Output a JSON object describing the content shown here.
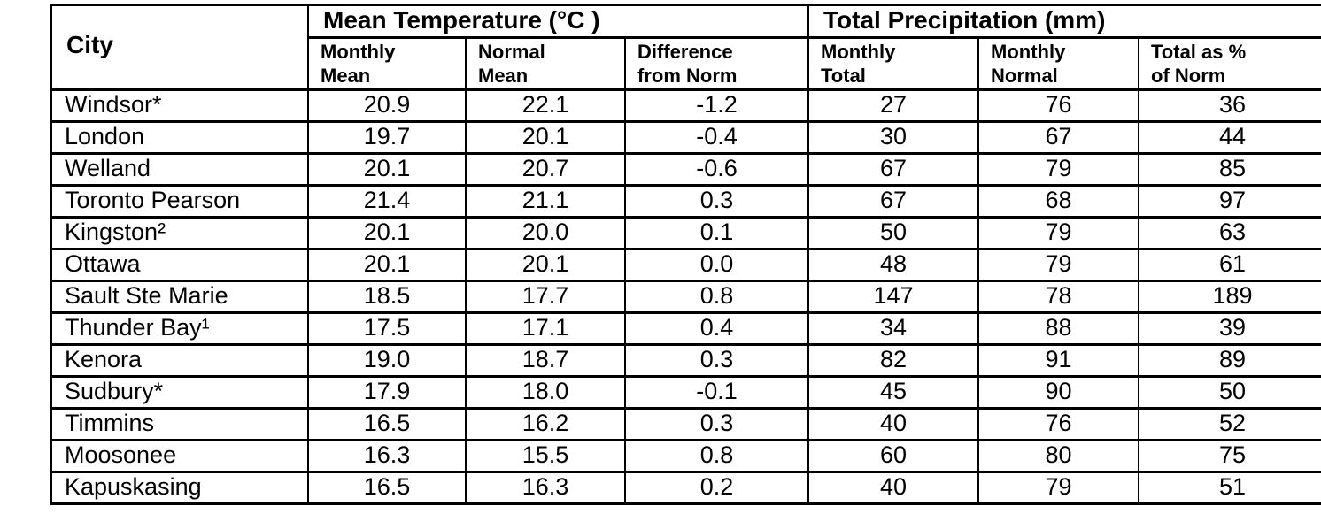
{
  "table": {
    "header": {
      "city": "City",
      "temp_group": "Mean Temperature (°C )",
      "precip_group": "Total Precipitation (mm)",
      "subcolumns": [
        "Monthly\nMean",
        "Normal\nMean",
        "Difference\nfrom Norm",
        "Monthly\nTotal",
        "Monthly\nNormal",
        "Total as %\nof Norm"
      ]
    },
    "column_keys": [
      "city",
      "monthly_mean",
      "normal_mean",
      "diff_from_norm",
      "monthly_total",
      "monthly_normal",
      "total_pct_of_norm"
    ],
    "rows": [
      {
        "city": "Windsor*",
        "monthly_mean": "20.9",
        "normal_mean": "22.1",
        "diff_from_norm": "-1.2",
        "monthly_total": "27",
        "monthly_normal": "76",
        "total_pct_of_norm": "36"
      },
      {
        "city": "London",
        "monthly_mean": "19.7",
        "normal_mean": "20.1",
        "diff_from_norm": "-0.4",
        "monthly_total": "30",
        "monthly_normal": "67",
        "total_pct_of_norm": "44"
      },
      {
        "city": "Welland",
        "monthly_mean": "20.1",
        "normal_mean": "20.7",
        "diff_from_norm": "-0.6",
        "monthly_total": "67",
        "monthly_normal": "79",
        "total_pct_of_norm": "85"
      },
      {
        "city": "Toronto Pearson",
        "monthly_mean": "21.4",
        "normal_mean": "21.1",
        "diff_from_norm": "0.3",
        "monthly_total": "67",
        "monthly_normal": "68",
        "total_pct_of_norm": "97"
      },
      {
        "city": "Kingston²",
        "monthly_mean": "20.1",
        "normal_mean": "20.0",
        "diff_from_norm": "0.1",
        "monthly_total": "50",
        "monthly_normal": "79",
        "total_pct_of_norm": "63"
      },
      {
        "city": "Ottawa",
        "monthly_mean": "20.1",
        "normal_mean": "20.1",
        "diff_from_norm": "0.0",
        "monthly_total": "48",
        "monthly_normal": "79",
        "total_pct_of_norm": "61"
      },
      {
        "city": "Sault Ste Marie",
        "monthly_mean": "18.5",
        "normal_mean": "17.7",
        "diff_from_norm": "0.8",
        "monthly_total": "147",
        "monthly_normal": "78",
        "total_pct_of_norm": "189"
      },
      {
        "city": "Thunder Bay¹",
        "monthly_mean": "17.5",
        "normal_mean": "17.1",
        "diff_from_norm": "0.4",
        "monthly_total": "34",
        "monthly_normal": "88",
        "total_pct_of_norm": "39"
      },
      {
        "city": "Kenora",
        "monthly_mean": "19.0",
        "normal_mean": "18.7",
        "diff_from_norm": "0.3",
        "monthly_total": "82",
        "monthly_normal": "91",
        "total_pct_of_norm": "89"
      },
      {
        "city": "Sudbury*",
        "monthly_mean": "17.9",
        "normal_mean": "18.0",
        "diff_from_norm": "-0.1",
        "monthly_total": "45",
        "monthly_normal": "90",
        "total_pct_of_norm": "50"
      },
      {
        "city": "Timmins",
        "monthly_mean": "16.5",
        "normal_mean": "16.2",
        "diff_from_norm": "0.3",
        "monthly_total": "40",
        "monthly_normal": "76",
        "total_pct_of_norm": "52"
      },
      {
        "city": "Moosonee",
        "monthly_mean": "16.3",
        "normal_mean": "15.5",
        "diff_from_norm": "0.8",
        "monthly_total": "60",
        "monthly_normal": "80",
        "total_pct_of_norm": "75"
      },
      {
        "city": "Kapuskasing",
        "monthly_mean": "16.5",
        "normal_mean": "16.3",
        "diff_from_norm": "0.2",
        "monthly_total": "40",
        "monthly_normal": "79",
        "total_pct_of_norm": "51"
      }
    ]
  }
}
